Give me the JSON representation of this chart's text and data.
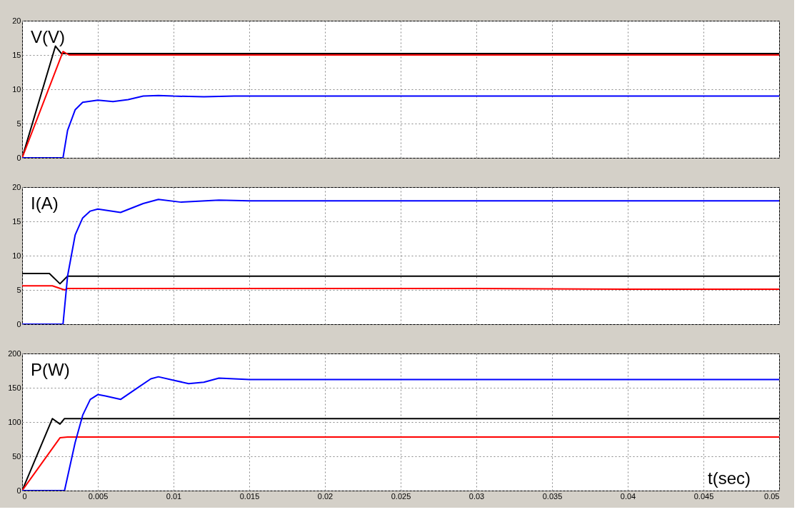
{
  "chart_data": [
    {
      "type": "line",
      "annotations": [
        "V(V)"
      ],
      "xlim": [
        0,
        0.05
      ],
      "xticks": [
        0,
        0.005,
        0.01,
        0.015,
        0.02,
        0.025,
        0.03,
        0.035,
        0.04,
        0.045,
        0.05
      ],
      "ylim": [
        0,
        20
      ],
      "yticks": [
        0,
        5,
        10,
        15,
        20
      ],
      "grid": true,
      "tick_labels": "y",
      "series": [
        {
          "color": "#000000",
          "x": [
            0,
            0.0022,
            0.0026,
            0.01,
            0.02,
            0.03,
            0.04,
            0.05
          ],
          "values": [
            0,
            16.3,
            15.2,
            15.2,
            15.2,
            15.2,
            15.2,
            15.2
          ]
        },
        {
          "color": "#ff0000",
          "x": [
            0,
            0.0027,
            0.0031,
            0.01,
            0.02,
            0.03,
            0.04,
            0.05
          ],
          "values": [
            0,
            15.5,
            15,
            15,
            15,
            15,
            15,
            15
          ]
        },
        {
          "color": "#0000ff",
          "x": [
            0,
            0.0027,
            0.003,
            0.0035,
            0.004,
            0.005,
            0.006,
            0.007,
            0.008,
            0.009,
            0.01,
            0.012,
            0.014,
            0.02,
            0.03,
            0.04,
            0.05
          ],
          "values": [
            0,
            0,
            4,
            7,
            8.1,
            8.4,
            8.2,
            8.5,
            9.0,
            9.1,
            9.0,
            8.9,
            9.0,
            9.0,
            9.0,
            9.0,
            9.0
          ]
        }
      ]
    },
    {
      "type": "line",
      "annotations": [
        "I(A)"
      ],
      "xlim": [
        0,
        0.05
      ],
      "xticks": [
        0,
        0.005,
        0.01,
        0.015,
        0.02,
        0.025,
        0.03,
        0.035,
        0.04,
        0.045,
        0.05
      ],
      "ylim": [
        0,
        20
      ],
      "yticks": [
        0,
        5,
        10,
        15,
        20
      ],
      "grid": true,
      "tick_labels": "y",
      "series": [
        {
          "color": "#000000",
          "x": [
            0,
            0.0018,
            0.0025,
            0.003,
            0.01,
            0.02,
            0.03,
            0.04,
            0.05
          ],
          "values": [
            7.4,
            7.4,
            5.9,
            7.0,
            7.0,
            7.0,
            7.0,
            7.0,
            7.0
          ]
        },
        {
          "color": "#ff0000",
          "x": [
            0,
            0.002,
            0.0028,
            0.003,
            0.01,
            0.02,
            0.03,
            0.04,
            0.05
          ],
          "values": [
            5.6,
            5.6,
            5.0,
            5.2,
            5.2,
            5.2,
            5.2,
            5.1,
            5.1
          ]
        },
        {
          "color": "#0000ff",
          "x": [
            0,
            0.0027,
            0.003,
            0.0035,
            0.004,
            0.0045,
            0.005,
            0.0065,
            0.008,
            0.009,
            0.0105,
            0.013,
            0.015,
            0.02,
            0.03,
            0.04,
            0.05
          ],
          "values": [
            0,
            0,
            7,
            13,
            15.5,
            16.5,
            16.8,
            16.3,
            17.6,
            18.2,
            17.8,
            18.1,
            18.0,
            18.0,
            18.0,
            18.0,
            18.0
          ]
        }
      ]
    },
    {
      "type": "line",
      "annotations": [
        "P(W)"
      ],
      "xlabel": "t(sec)",
      "xlim": [
        0,
        0.05
      ],
      "xticks": [
        0,
        0.005,
        0.01,
        0.015,
        0.02,
        0.025,
        0.03,
        0.035,
        0.04,
        0.045,
        0.05
      ],
      "ylim": [
        0,
        200
      ],
      "yticks": [
        0,
        50,
        100,
        150,
        200
      ],
      "grid": true,
      "series": [
        {
          "color": "#000000",
          "x": [
            0,
            0.002,
            0.0025,
            0.0028,
            0.01,
            0.02,
            0.03,
            0.04,
            0.05
          ],
          "values": [
            0,
            105,
            97,
            105,
            105,
            105,
            105,
            105,
            105
          ]
        },
        {
          "color": "#ff0000",
          "x": [
            0,
            0.0025,
            0.003,
            0.01,
            0.02,
            0.03,
            0.04,
            0.05
          ],
          "values": [
            0,
            77,
            78,
            78,
            78,
            78,
            78,
            78
          ]
        },
        {
          "color": "#0000ff",
          "x": [
            0,
            0.0028,
            0.0035,
            0.004,
            0.0045,
            0.005,
            0.0055,
            0.0065,
            0.0075,
            0.0085,
            0.009,
            0.01,
            0.011,
            0.012,
            0.013,
            0.015,
            0.02,
            0.03,
            0.04,
            0.05
          ],
          "values": [
            0,
            0,
            70,
            110,
            133,
            140,
            138,
            133,
            148,
            163,
            166,
            161,
            156,
            158,
            164,
            162,
            162,
            162,
            162,
            162
          ]
        }
      ]
    }
  ]
}
